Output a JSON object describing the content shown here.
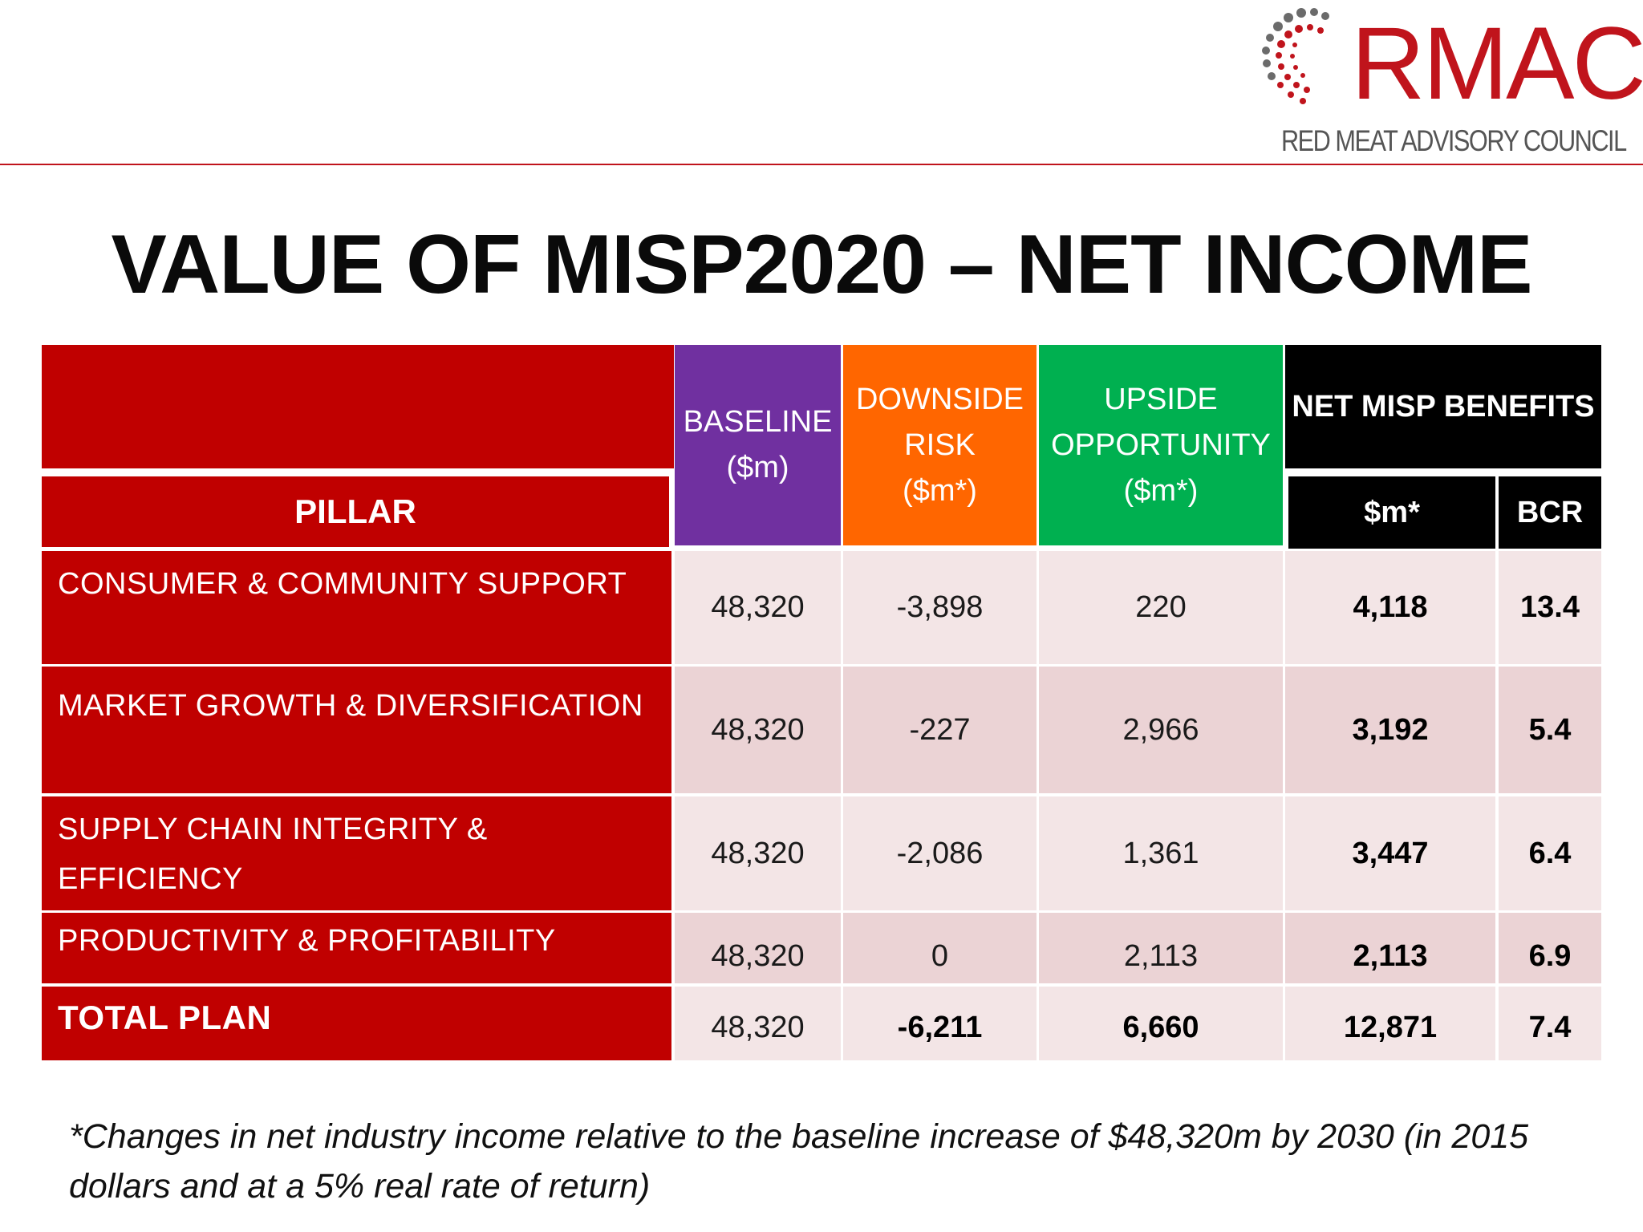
{
  "logo": {
    "wordmark": "RMAC",
    "subtitle": "RED MEAT ADVISORY COUNCIL"
  },
  "title": "VALUE OF MISP2020 – NET INCOME",
  "table": {
    "headers": {
      "pillar": "PILLAR",
      "baseline": [
        "BASELINE",
        "($m)"
      ],
      "downside": [
        "DOWNSIDE",
        "RISK",
        "($m*)"
      ],
      "upside": [
        "UPSIDE",
        "OPPORTUNITY",
        "($m*)"
      ],
      "net": "NET MISP BENEFITS",
      "net_sm": "$m*",
      "bcr": "BCR"
    },
    "rows": [
      {
        "pillar": "CONSUMER & COMMUNITY SUPPORT",
        "baseline": "48,320",
        "downside": "-3,898",
        "upside": "220",
        "net": "4,118",
        "bcr": "13.4"
      },
      {
        "pillar": "MARKET GROWTH & DIVERSIFICATION",
        "baseline": "48,320",
        "downside": "-227",
        "upside": "2,966",
        "net": "3,192",
        "bcr": "5.4"
      },
      {
        "pillar": "SUPPLY CHAIN INTEGRITY & EFFICIENCY",
        "baseline": "48,320",
        "downside": "-2,086",
        "upside": "1,361",
        "net": "3,447",
        "bcr": "6.4"
      },
      {
        "pillar": "PRODUCTIVITY & PROFITABILITY",
        "baseline": "48,320",
        "downside": "0",
        "upside": "2,113",
        "net": "2,113",
        "bcr": "6.9"
      }
    ],
    "total": {
      "pillar": "TOTAL PLAN",
      "baseline": "48,320",
      "downside": "-6,211",
      "upside": "6,660",
      "net": "12,871",
      "bcr": "7.4"
    }
  },
  "footnote": "*Changes in net industry income relative to the baseline increase of $48,320m by 2030 (in 2015 dollars and at a 5% real rate of return)",
  "colors": {
    "brand_red": "#c00000",
    "baseline_purple": "#7030a0",
    "downside_orange": "#ff6600",
    "upside_green": "#00b050",
    "net_black": "#000000",
    "row_light": "#f3e5e6",
    "row_dark": "#ebd3d5"
  }
}
